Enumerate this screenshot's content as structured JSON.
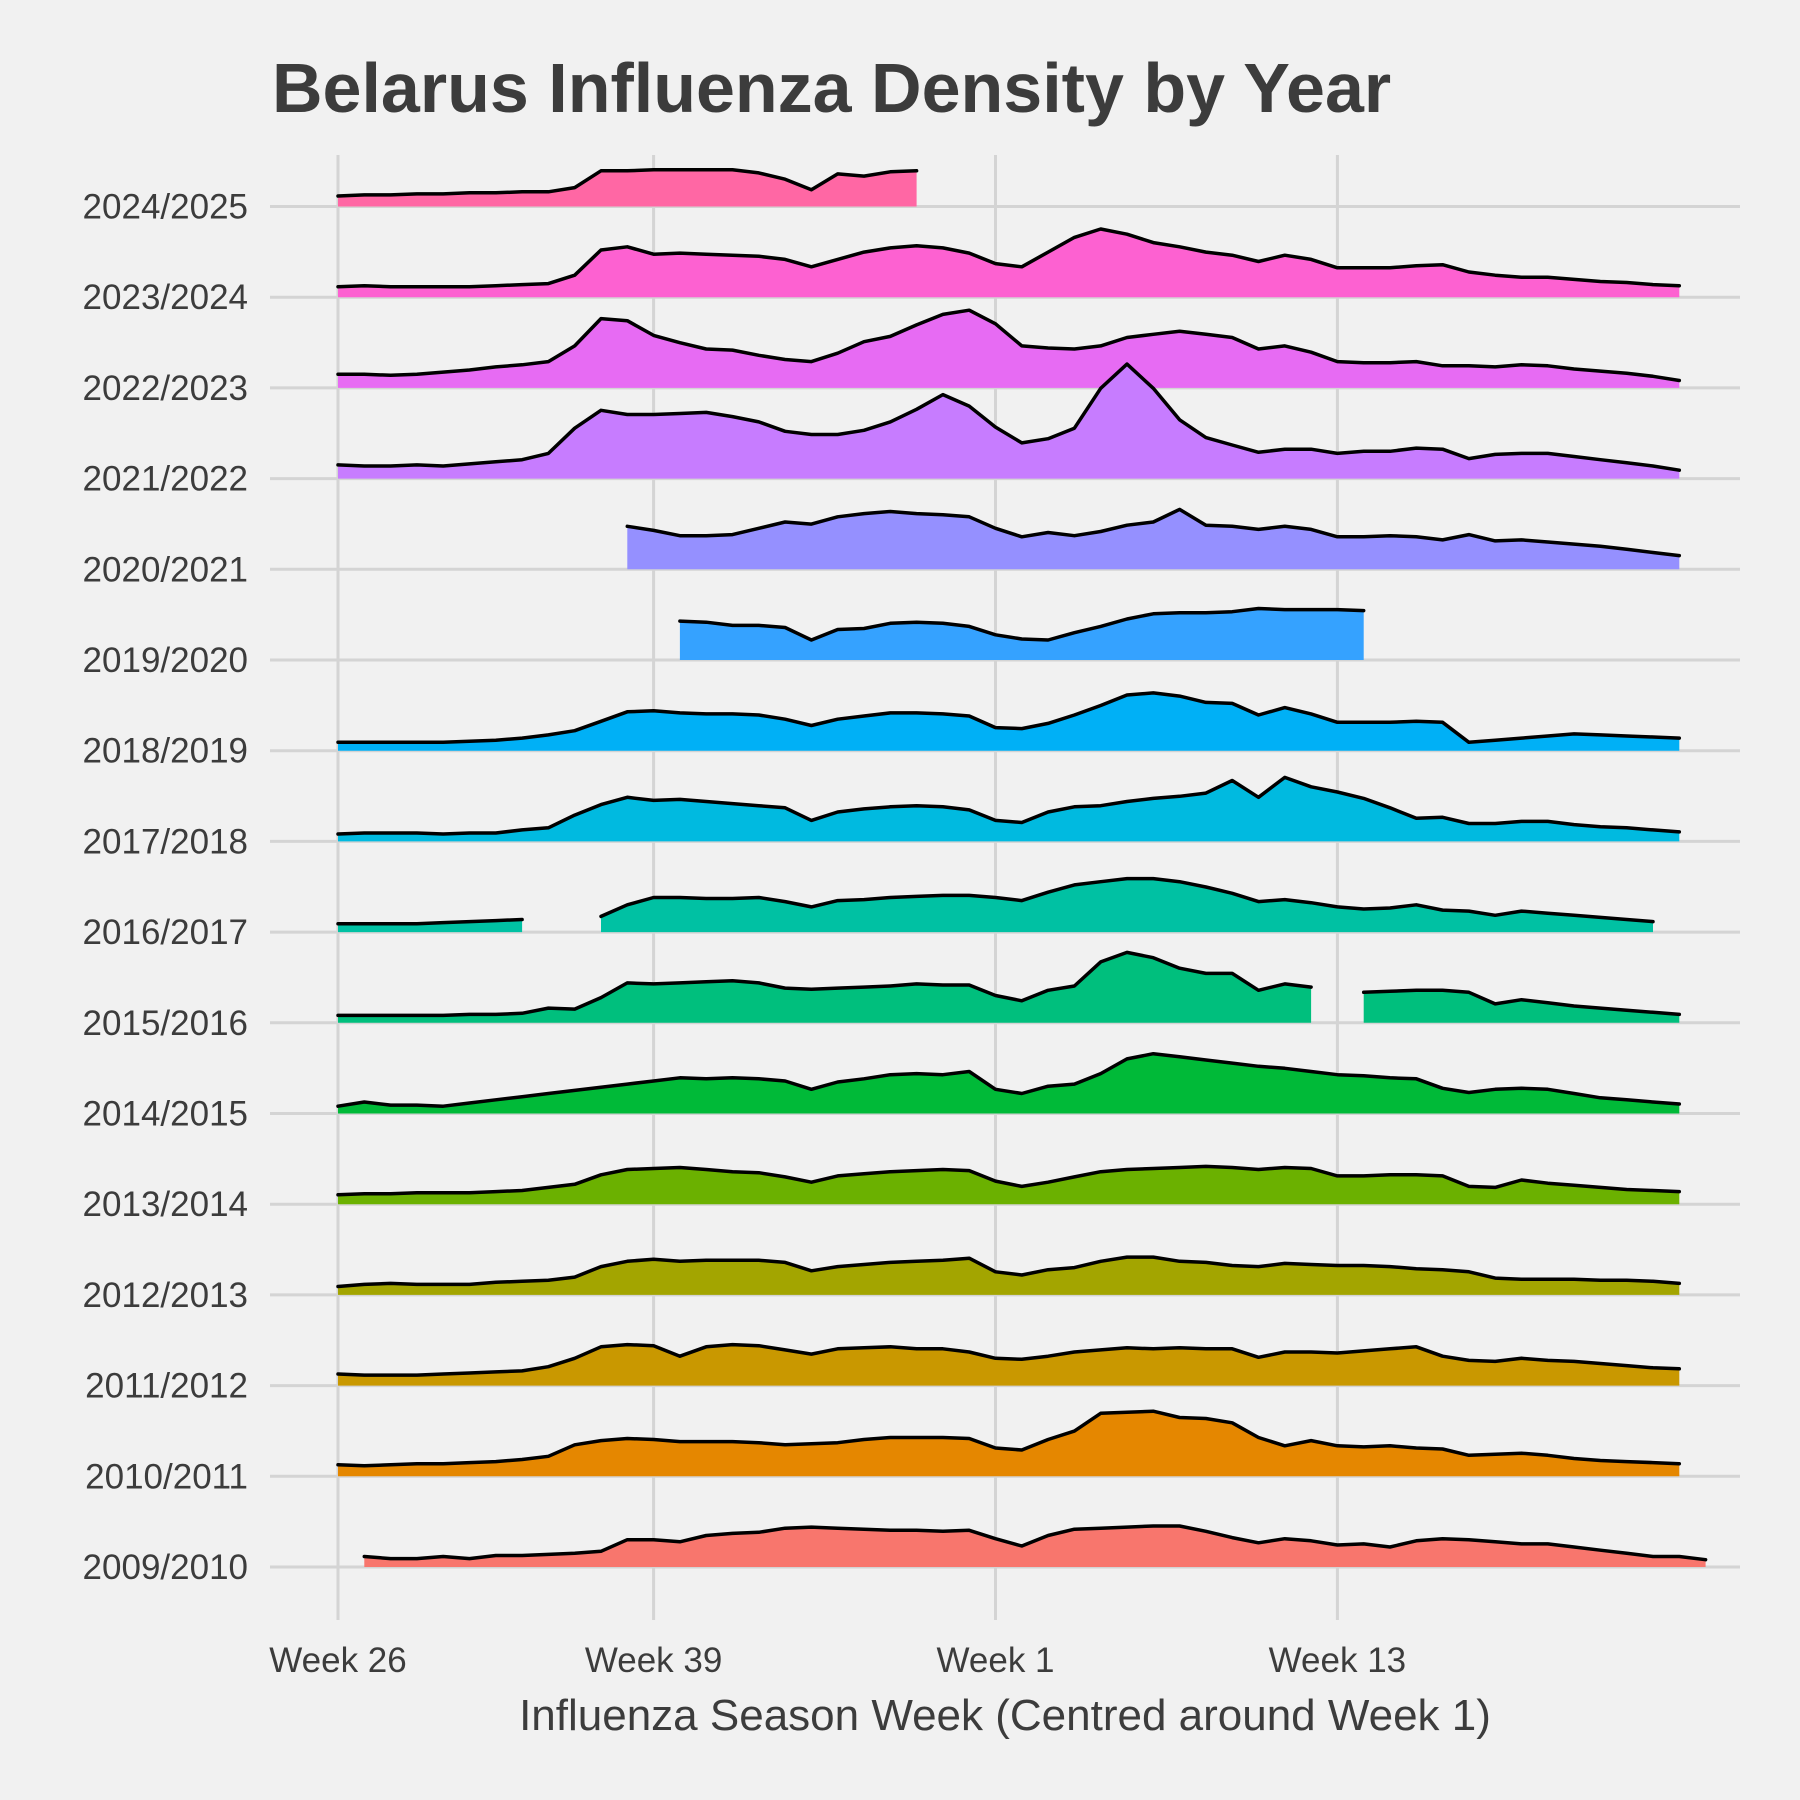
{
  "chart_data": {
    "type": "ridgeline",
    "title": "Belarus Influenza Density by Year",
    "xlabel": "Influenza Season Week (Centred around Week 1)",
    "ylabel": "",
    "x_ticks": [
      {
        "label": "Week 26",
        "index": 0
      },
      {
        "label": "Week 39",
        "index": 12
      },
      {
        "label": "Week 1",
        "index": 25
      },
      {
        "label": "Week 13",
        "index": 38
      }
    ],
    "x_range": [
      -0.5,
      53.5
    ],
    "grid": true,
    "legend": "none",
    "series": [
      {
        "name": "2009/2010",
        "color": "#F8766D",
        "values": [
          null,
          0.1,
          0.08,
          0.08,
          0.1,
          0.08,
          0.11,
          0.11,
          0.12,
          0.13,
          0.15,
          0.26,
          0.26,
          0.24,
          0.3,
          0.32,
          0.33,
          0.37,
          0.38,
          0.37,
          0.36,
          0.35,
          0.35,
          0.34,
          0.35,
          0.27,
          0.2,
          0.3,
          0.36,
          0.37,
          0.38,
          0.39,
          0.39,
          0.34,
          0.28,
          0.23,
          0.27,
          0.25,
          0.21,
          0.22,
          0.19,
          0.25,
          0.27,
          0.26,
          0.24,
          0.22,
          0.22,
          0.19,
          0.16,
          0.13,
          0.1,
          0.1,
          0.07
        ]
      },
      {
        "name": "2010/2011",
        "color": "#E58700",
        "values": [
          0.11,
          0.1,
          0.11,
          0.12,
          0.12,
          0.13,
          0.14,
          0.16,
          0.19,
          0.3,
          0.34,
          0.36,
          0.35,
          0.33,
          0.33,
          0.33,
          0.32,
          0.3,
          0.31,
          0.32,
          0.35,
          0.37,
          0.37,
          0.37,
          0.36,
          0.27,
          0.25,
          0.35,
          0.43,
          0.6,
          0.61,
          0.62,
          0.56,
          0.55,
          0.51,
          0.37,
          0.29,
          0.34,
          0.29,
          0.28,
          0.29,
          0.27,
          0.26,
          0.2,
          0.21,
          0.22,
          0.2,
          0.17,
          0.15,
          0.14,
          0.13,
          0.12
        ]
      },
      {
        "name": "2011/2012",
        "color": "#C99800",
        "values": [
          0.11,
          0.1,
          0.1,
          0.1,
          0.11,
          0.12,
          0.13,
          0.14,
          0.18,
          0.26,
          0.37,
          0.39,
          0.38,
          0.28,
          0.37,
          0.39,
          0.38,
          0.34,
          0.3,
          0.35,
          0.36,
          0.37,
          0.35,
          0.35,
          0.32,
          0.26,
          0.25,
          0.28,
          0.32,
          0.34,
          0.36,
          0.35,
          0.36,
          0.35,
          0.35,
          0.27,
          0.32,
          0.32,
          0.31,
          0.33,
          0.35,
          0.37,
          0.28,
          0.24,
          0.23,
          0.26,
          0.24,
          0.23,
          0.21,
          0.19,
          0.17,
          0.16
        ]
      },
      {
        "name": "2012/2013",
        "color": "#A3A500",
        "values": [
          0.08,
          0.1,
          0.11,
          0.1,
          0.1,
          0.1,
          0.12,
          0.13,
          0.14,
          0.17,
          0.27,
          0.32,
          0.34,
          0.32,
          0.33,
          0.33,
          0.33,
          0.31,
          0.23,
          0.27,
          0.29,
          0.31,
          0.32,
          0.33,
          0.35,
          0.22,
          0.19,
          0.24,
          0.26,
          0.32,
          0.36,
          0.36,
          0.32,
          0.31,
          0.28,
          0.27,
          0.3,
          0.29,
          0.28,
          0.28,
          0.27,
          0.25,
          0.24,
          0.22,
          0.16,
          0.15,
          0.15,
          0.15,
          0.14,
          0.14,
          0.13,
          0.11
        ]
      },
      {
        "name": "2013/2014",
        "color": "#6BB100",
        "values": [
          0.09,
          0.1,
          0.1,
          0.11,
          0.11,
          0.11,
          0.12,
          0.13,
          0.16,
          0.19,
          0.28,
          0.33,
          0.34,
          0.35,
          0.33,
          0.31,
          0.3,
          0.26,
          0.21,
          0.27,
          0.29,
          0.31,
          0.32,
          0.33,
          0.32,
          0.22,
          0.17,
          0.21,
          0.26,
          0.31,
          0.33,
          0.34,
          0.35,
          0.36,
          0.35,
          0.33,
          0.35,
          0.34,
          0.27,
          0.27,
          0.28,
          0.28,
          0.27,
          0.17,
          0.16,
          0.23,
          0.2,
          0.18,
          0.16,
          0.14,
          0.13,
          0.12
        ]
      },
      {
        "name": "2014/2015",
        "color": "#00BA38",
        "values": [
          0.07,
          0.11,
          0.08,
          0.08,
          0.07,
          0.1,
          0.13,
          0.16,
          0.19,
          0.22,
          0.25,
          0.28,
          0.31,
          0.34,
          0.33,
          0.34,
          0.33,
          0.31,
          0.23,
          0.3,
          0.33,
          0.37,
          0.38,
          0.37,
          0.4,
          0.23,
          0.19,
          0.26,
          0.28,
          0.38,
          0.52,
          0.57,
          0.54,
          0.51,
          0.48,
          0.45,
          0.43,
          0.4,
          0.37,
          0.36,
          0.34,
          0.33,
          0.24,
          0.2,
          0.23,
          0.24,
          0.23,
          0.19,
          0.15,
          0.13,
          0.11,
          0.09
        ]
      },
      {
        "name": "2015/2016",
        "color": "#00BF7D",
        "values": [
          0.07,
          0.07,
          0.07,
          0.07,
          0.07,
          0.08,
          0.08,
          0.09,
          0.14,
          0.13,
          0.24,
          0.38,
          0.37,
          0.38,
          0.39,
          0.4,
          0.38,
          0.33,
          0.32,
          0.33,
          0.34,
          0.35,
          0.37,
          0.36,
          0.36,
          0.26,
          0.21,
          0.31,
          0.35,
          0.58,
          0.67,
          0.62,
          0.52,
          0.47,
          0.47,
          0.31,
          0.37,
          0.34,
          null,
          0.29,
          0.3,
          0.31,
          0.31,
          0.29,
          0.18,
          0.22,
          0.19,
          0.16,
          0.14,
          0.12,
          0.1,
          0.08
        ]
      },
      {
        "name": "2016/2017",
        "color": "#00C1A3",
        "values": [
          0.08,
          0.08,
          0.08,
          0.08,
          0.09,
          0.1,
          0.11,
          0.12,
          null,
          null,
          0.15,
          0.26,
          0.33,
          0.33,
          0.32,
          0.32,
          0.33,
          0.29,
          0.24,
          0.3,
          0.31,
          0.33,
          0.34,
          0.35,
          0.35,
          0.33,
          0.3,
          0.38,
          0.45,
          0.48,
          0.51,
          0.51,
          0.48,
          0.43,
          0.37,
          0.29,
          0.31,
          0.28,
          0.24,
          0.22,
          0.23,
          0.26,
          0.21,
          0.2,
          0.16,
          0.2,
          0.18,
          0.16,
          0.14,
          0.12,
          0.1,
          null
        ]
      },
      {
        "name": "2017/2018",
        "color": "#00BAE0",
        "values": [
          0.07,
          0.08,
          0.08,
          0.08,
          0.07,
          0.08,
          0.08,
          0.11,
          0.13,
          0.25,
          0.35,
          0.42,
          0.39,
          0.4,
          0.38,
          0.36,
          0.34,
          0.32,
          0.2,
          0.28,
          0.31,
          0.33,
          0.34,
          0.33,
          0.3,
          0.2,
          0.18,
          0.28,
          0.33,
          0.34,
          0.38,
          0.41,
          0.43,
          0.46,
          0.58,
          0.42,
          0.61,
          0.52,
          0.47,
          0.41,
          0.32,
          0.22,
          0.23,
          0.17,
          0.17,
          0.19,
          0.19,
          0.16,
          0.14,
          0.13,
          0.11,
          0.09
        ]
      },
      {
        "name": "2018/2019",
        "color": "#00B0F6",
        "values": [
          0.08,
          0.08,
          0.08,
          0.08,
          0.08,
          0.09,
          0.1,
          0.12,
          0.15,
          0.19,
          0.28,
          0.37,
          0.38,
          0.36,
          0.35,
          0.35,
          0.34,
          0.3,
          0.24,
          0.3,
          0.33,
          0.36,
          0.36,
          0.35,
          0.33,
          0.22,
          0.21,
          0.26,
          0.34,
          0.43,
          0.53,
          0.55,
          0.52,
          0.46,
          0.45,
          0.34,
          0.41,
          0.35,
          0.27,
          0.27,
          0.27,
          0.28,
          0.27,
          0.08,
          0.1,
          0.12,
          0.14,
          0.16,
          0.15,
          0.14,
          0.13,
          0.12
        ]
      },
      {
        "name": "2019/2020",
        "color": "#35A2FF",
        "values": [
          null,
          null,
          null,
          null,
          null,
          null,
          null,
          null,
          null,
          null,
          null,
          null,
          null,
          0.37,
          0.36,
          0.33,
          0.33,
          0.31,
          0.19,
          0.29,
          0.3,
          0.35,
          0.36,
          0.35,
          0.32,
          0.24,
          0.2,
          0.19,
          0.26,
          0.32,
          0.39,
          0.44,
          0.45,
          0.45,
          0.46,
          0.49,
          0.48,
          0.48,
          0.48,
          0.47,
          null,
          null,
          null,
          null,
          null,
          null,
          null,
          null,
          null,
          null,
          null,
          null
        ]
      },
      {
        "name": "2020/2021",
        "color": "#9590FF",
        "values": [
          null,
          null,
          null,
          null,
          null,
          null,
          null,
          null,
          null,
          null,
          null,
          0.41,
          0.37,
          0.32,
          0.32,
          0.33,
          0.39,
          0.45,
          0.43,
          0.5,
          0.53,
          0.55,
          0.53,
          0.52,
          0.5,
          0.39,
          0.31,
          0.35,
          0.32,
          0.36,
          0.42,
          0.45,
          0.57,
          0.42,
          0.41,
          0.38,
          0.41,
          0.38,
          0.31,
          0.31,
          0.32,
          0.31,
          0.28,
          0.33,
          0.27,
          0.28,
          0.26,
          0.24,
          0.22,
          0.19,
          0.16,
          0.13
        ]
      },
      {
        "name": "2021/2022",
        "color": "#C77CFF",
        "values": [
          0.13,
          0.12,
          0.12,
          0.13,
          0.12,
          0.14,
          0.16,
          0.18,
          0.24,
          0.48,
          0.65,
          0.61,
          0.61,
          0.62,
          0.63,
          0.59,
          0.54,
          0.45,
          0.42,
          0.42,
          0.46,
          0.54,
          0.66,
          0.8,
          0.69,
          0.49,
          0.34,
          0.38,
          0.48,
          0.86,
          1.09,
          0.86,
          0.56,
          0.39,
          0.32,
          0.25,
          0.28,
          0.28,
          0.24,
          0.26,
          0.26,
          0.29,
          0.28,
          0.19,
          0.23,
          0.24,
          0.24,
          0.21,
          0.18,
          0.15,
          0.12,
          0.08
        ]
      },
      {
        "name": "2022/2023",
        "color": "#E76BF3",
        "values": [
          0.13,
          0.13,
          0.12,
          0.13,
          0.15,
          0.17,
          0.2,
          0.22,
          0.25,
          0.4,
          0.66,
          0.64,
          0.5,
          0.43,
          0.37,
          0.36,
          0.31,
          0.27,
          0.25,
          0.33,
          0.44,
          0.49,
          0.6,
          0.7,
          0.74,
          0.61,
          0.4,
          0.38,
          0.37,
          0.4,
          0.48,
          0.51,
          0.54,
          0.51,
          0.48,
          0.37,
          0.4,
          0.34,
          0.25,
          0.24,
          0.24,
          0.25,
          0.21,
          0.21,
          0.2,
          0.22,
          0.21,
          0.18,
          0.16,
          0.14,
          0.11,
          0.07
        ]
      },
      {
        "name": "2023/2024",
        "color": "#FD61D1",
        "values": [
          0.1,
          0.11,
          0.1,
          0.1,
          0.1,
          0.1,
          0.11,
          0.12,
          0.13,
          0.21,
          0.45,
          0.48,
          0.41,
          0.42,
          0.41,
          0.4,
          0.39,
          0.36,
          0.29,
          0.36,
          0.43,
          0.47,
          0.49,
          0.47,
          0.42,
          0.32,
          0.29,
          0.43,
          0.57,
          0.65,
          0.6,
          0.52,
          0.48,
          0.43,
          0.4,
          0.34,
          0.4,
          0.36,
          0.28,
          0.28,
          0.28,
          0.3,
          0.31,
          0.24,
          0.21,
          0.19,
          0.19,
          0.17,
          0.15,
          0.14,
          0.12,
          0.11
        ]
      },
      {
        "name": "2024/2025",
        "color": "#FF67A4",
        "values": [
          0.1,
          0.11,
          0.11,
          0.12,
          0.12,
          0.13,
          0.13,
          0.14,
          0.14,
          0.18,
          0.34,
          0.34,
          0.35,
          0.35,
          0.35,
          0.35,
          0.32,
          0.26,
          0.16,
          0.31,
          0.29,
          0.33,
          0.34,
          null,
          null,
          null,
          null,
          null,
          null,
          null,
          null,
          null,
          null,
          null,
          null,
          null,
          null,
          null,
          null,
          null,
          null,
          null,
          null,
          null,
          null,
          null,
          null,
          null,
          null,
          null,
          null,
          null
        ]
      }
    ]
  }
}
